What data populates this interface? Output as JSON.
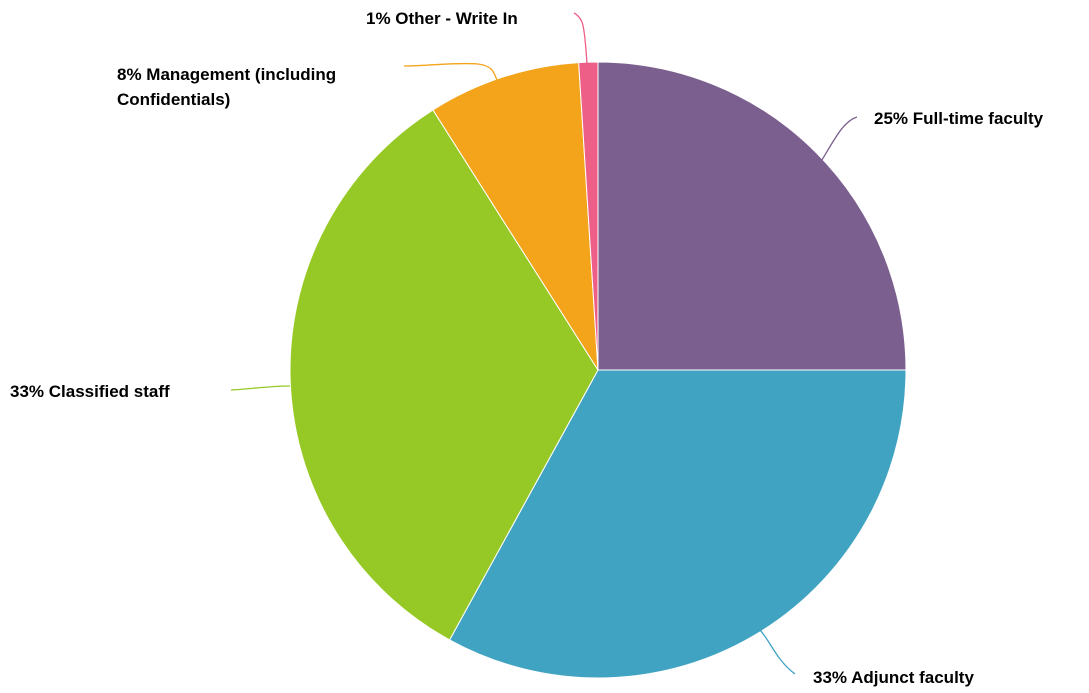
{
  "chart_data": {
    "type": "pie",
    "title": "",
    "slices": [
      {
        "label": "Full-time faculty",
        "display": "25% Full-time faculty",
        "lines": [
          "25% Full-time faculty"
        ],
        "value": 25,
        "color": "#7b5f8e"
      },
      {
        "label": "Adjunct faculty",
        "display": "33% Adjunct faculty",
        "lines": [
          "33% Adjunct faculty"
        ],
        "value": 33,
        "color": "#40a3c2"
      },
      {
        "label": "Classified staff",
        "display": "33% Classified staff",
        "lines": [
          "33% Classified staff"
        ],
        "value": 33,
        "color": "#97c926"
      },
      {
        "label": "Management (including Confidentials)",
        "display": "8% Management (including Confidentials)",
        "lines": [
          "8% Management (including",
          "Confidentials)"
        ],
        "value": 8,
        "color": "#f4a41a"
      },
      {
        "label": "Other - Write In",
        "display": "1% Other - Write In",
        "lines": [
          "1% Other - Write In"
        ],
        "value": 1,
        "color": "#ee5f87"
      }
    ],
    "legend": "none"
  }
}
